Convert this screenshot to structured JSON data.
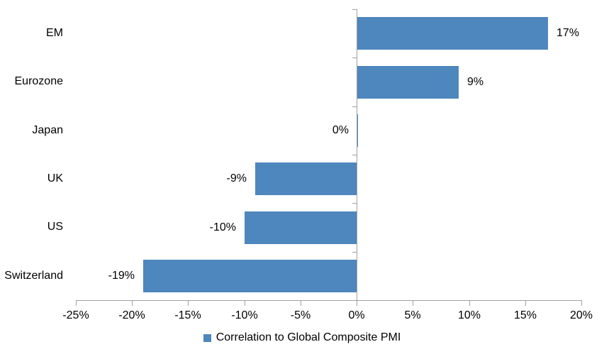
{
  "chart_data": {
    "type": "bar",
    "orientation": "horizontal",
    "title": "",
    "categories": [
      "EM",
      "Eurozone",
      "Japan",
      "UK",
      "US",
      "Switzerland"
    ],
    "values": [
      17,
      9,
      0,
      -9,
      -10,
      -19
    ],
    "value_labels": [
      "17%",
      "9%",
      "0%",
      "-9%",
      "-10%",
      "-19%"
    ],
    "series_name": "Correlation to Global Composite PMI",
    "xlim": [
      -25,
      20
    ],
    "xticks": [
      -25,
      -20,
      -15,
      -10,
      -5,
      0,
      5,
      10,
      15,
      20
    ],
    "xtick_labels": [
      "-25%",
      "-20%",
      "-15%",
      "-10%",
      "-5%",
      "0%",
      "5%",
      "10%",
      "15%",
      "20%"
    ],
    "grid": false,
    "legend_position": "bottom-center",
    "colors": {
      "bar": "#4E86BE",
      "axis": "#A0A0A0",
      "text": "#000000"
    }
  }
}
